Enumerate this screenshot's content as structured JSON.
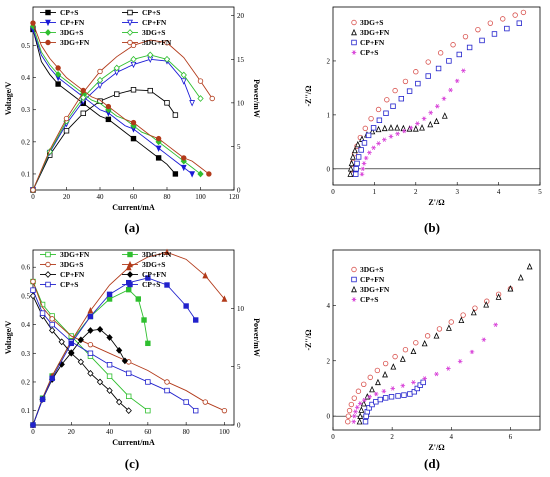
{
  "chart_data": [
    {
      "type": "line",
      "caption": "(a)",
      "xlabel": "Current/mA",
      "ylabel": "Voltage/V",
      "y2label": "Power/mW",
      "xlim": [
        0,
        120
      ],
      "ylim": [
        0.05,
        0.62
      ],
      "y2lim": [
        0,
        21
      ],
      "xticks": [
        0,
        20,
        40,
        60,
        80,
        100,
        120
      ],
      "yticks": [
        0.1,
        0.2,
        0.3,
        0.4,
        0.5
      ],
      "y2ticks": [
        0,
        5,
        10,
        15,
        20
      ],
      "legend": {
        "position": "top",
        "columns": 2
      },
      "series": [
        {
          "name": "CP+S",
          "axis": "left",
          "color": "#000000",
          "marker": "filled-square",
          "x": [
            0,
            5,
            10,
            15,
            20,
            25,
            30,
            35,
            40,
            45,
            50,
            55,
            60,
            65,
            70,
            75,
            80,
            85
          ],
          "y": [
            0.55,
            0.45,
            0.41,
            0.38,
            0.36,
            0.34,
            0.32,
            0.3,
            0.28,
            0.27,
            0.25,
            0.23,
            0.21,
            0.19,
            0.17,
            0.15,
            0.13,
            0.1
          ]
        },
        {
          "name": "CP+S",
          "axis": "right",
          "color": "#000000",
          "marker": "open-square",
          "x": [
            0,
            10,
            20,
            30,
            40,
            50,
            60,
            70,
            80,
            85
          ],
          "y": [
            0,
            4.0,
            6.8,
            8.8,
            10.2,
            11.0,
            11.5,
            11.4,
            10.0,
            8.6
          ]
        },
        {
          "name": "CP+FN",
          "axis": "left",
          "color": "#1a1ad6",
          "marker": "filled-triangle-down",
          "x": [
            0,
            5,
            10,
            15,
            20,
            25,
            30,
            35,
            40,
            45,
            50,
            55,
            60,
            65,
            70,
            75,
            80,
            85,
            90,
            95
          ],
          "y": [
            0.55,
            0.47,
            0.43,
            0.4,
            0.38,
            0.36,
            0.34,
            0.32,
            0.3,
            0.29,
            0.27,
            0.25,
            0.24,
            0.22,
            0.2,
            0.18,
            0.16,
            0.14,
            0.12,
            0.1
          ]
        },
        {
          "name": "CP+FN",
          "axis": "right",
          "color": "#1a1ad6",
          "marker": "open-triangle-down",
          "x": [
            0,
            10,
            20,
            30,
            40,
            50,
            60,
            70,
            80,
            90,
            95
          ],
          "y": [
            0,
            4.3,
            7.6,
            10.2,
            12.0,
            13.5,
            14.4,
            15.0,
            14.8,
            12.5,
            10.0
          ]
        },
        {
          "name": "3DG+S",
          "axis": "left",
          "color": "#2fbf2f",
          "marker": "filled-diamond",
          "x": [
            0,
            5,
            10,
            15,
            20,
            25,
            30,
            35,
            40,
            45,
            50,
            55,
            60,
            65,
            70,
            75,
            80,
            85,
            90,
            95,
            100
          ],
          "y": [
            0.56,
            0.48,
            0.44,
            0.41,
            0.39,
            0.37,
            0.35,
            0.33,
            0.32,
            0.3,
            0.28,
            0.27,
            0.25,
            0.23,
            0.22,
            0.2,
            0.18,
            0.16,
            0.14,
            0.12,
            0.1
          ]
        },
        {
          "name": "3DG+S",
          "axis": "right",
          "color": "#2fbf2f",
          "marker": "open-diamond",
          "x": [
            0,
            10,
            20,
            30,
            40,
            50,
            60,
            70,
            80,
            90,
            100
          ],
          "y": [
            0,
            4.4,
            7.9,
            10.6,
            12.6,
            14.0,
            15.0,
            15.5,
            15.0,
            13.2,
            10.5
          ]
        },
        {
          "name": "3DG+FN",
          "axis": "left",
          "color": "#b23a1a",
          "marker": "filled-circle",
          "x": [
            0,
            5,
            10,
            15,
            20,
            25,
            30,
            35,
            40,
            45,
            50,
            55,
            60,
            65,
            70,
            75,
            80,
            85,
            90,
            95,
            100,
            105
          ],
          "y": [
            0.57,
            0.5,
            0.46,
            0.43,
            0.4,
            0.38,
            0.36,
            0.34,
            0.33,
            0.31,
            0.29,
            0.27,
            0.26,
            0.24,
            0.22,
            0.21,
            0.19,
            0.17,
            0.15,
            0.14,
            0.12,
            0.1
          ]
        },
        {
          "name": "3DG+FN",
          "axis": "right",
          "color": "#b23a1a",
          "marker": "open-circle",
          "x": [
            0,
            10,
            20,
            30,
            40,
            50,
            60,
            70,
            80,
            90,
            100,
            107
          ],
          "y": [
            0,
            4.6,
            8.2,
            11.2,
            13.6,
            15.3,
            16.6,
            17.2,
            16.9,
            15.2,
            12.5,
            10.5
          ]
        }
      ]
    },
    {
      "type": "scatter",
      "caption": "(b)",
      "xlabel": "Z'/Ω",
      "ylabel": "-Z''/Ω",
      "xlim": [
        0,
        5
      ],
      "ylim": [
        -0.3,
        3.0
      ],
      "xticks": [
        0,
        1,
        2,
        3,
        4,
        5
      ],
      "yticks": [
        0,
        1,
        2
      ],
      "legend": {
        "position": "top-left",
        "columns": 1
      },
      "series": [
        {
          "name": "3DG+S",
          "color": "#d9534f",
          "marker": "open-circle",
          "x": [
            0.45,
            0.46,
            0.48,
            0.52,
            0.58,
            0.66,
            0.78,
            0.92,
            1.1,
            1.3,
            1.5,
            1.75,
            2.0,
            2.3,
            2.6,
            2.9,
            3.2,
            3.5,
            3.8,
            4.1,
            4.4,
            4.6
          ],
          "y": [
            -0.1,
            0.0,
            0.12,
            0.28,
            0.42,
            0.58,
            0.75,
            0.93,
            1.1,
            1.28,
            1.45,
            1.62,
            1.8,
            1.98,
            2.15,
            2.3,
            2.45,
            2.58,
            2.7,
            2.78,
            2.85,
            2.9
          ]
        },
        {
          "name": "3DG+FN",
          "color": "#000000",
          "marker": "open-triangle",
          "x": [
            0.42,
            0.43,
            0.45,
            0.48,
            0.53,
            0.6,
            0.7,
            0.82,
            0.95,
            1.1,
            1.25,
            1.4,
            1.55,
            1.7,
            1.85,
            2.0,
            2.15,
            2.35,
            2.5,
            2.7
          ],
          "y": [
            -0.1,
            0.0,
            0.1,
            0.22,
            0.34,
            0.45,
            0.55,
            0.63,
            0.69,
            0.73,
            0.75,
            0.76,
            0.76,
            0.75,
            0.74,
            0.74,
            0.76,
            0.82,
            0.88,
            0.98
          ]
        },
        {
          "name": "CP+FN",
          "color": "#2222cc",
          "marker": "open-square",
          "x": [
            0.55,
            0.56,
            0.58,
            0.62,
            0.68,
            0.76,
            0.86,
            0.98,
            1.12,
            1.28,
            1.45,
            1.65,
            1.85,
            2.05,
            2.3,
            2.55,
            2.8,
            3.05,
            3.3,
            3.6,
            3.9,
            4.2,
            4.5
          ],
          "y": [
            -0.1,
            0.0,
            0.1,
            0.22,
            0.35,
            0.48,
            0.62,
            0.76,
            0.9,
            1.03,
            1.16,
            1.3,
            1.44,
            1.58,
            1.72,
            1.86,
            2.0,
            2.12,
            2.25,
            2.38,
            2.5,
            2.6,
            2.7
          ]
        },
        {
          "name": "CP+S",
          "color": "#d63ad6",
          "marker": "star",
          "x": [
            0.7,
            0.72,
            0.75,
            0.8,
            0.88,
            0.98,
            1.1,
            1.24,
            1.4,
            1.56,
            1.72,
            1.88,
            2.04,
            2.2,
            2.36,
            2.52,
            2.68,
            2.84,
            3.0,
            3.15
          ],
          "y": [
            -0.1,
            0.0,
            0.1,
            0.2,
            0.3,
            0.39,
            0.47,
            0.54,
            0.6,
            0.65,
            0.7,
            0.76,
            0.84,
            0.93,
            1.04,
            1.16,
            1.3,
            1.46,
            1.63,
            1.82
          ]
        }
      ]
    },
    {
      "type": "line",
      "caption": "(c)",
      "xlabel": "Current/mA",
      "ylabel": "Voltage/V",
      "y2label": "Power/mW",
      "xlim": [
        0,
        105
      ],
      "ylim": [
        0.05,
        0.66
      ],
      "y2lim": [
        0,
        15
      ],
      "xticks": [
        0,
        20,
        40,
        60,
        80,
        100
      ],
      "yticks": [
        0.1,
        0.2,
        0.3,
        0.4,
        0.5,
        0.6
      ],
      "y2ticks": [
        0,
        5,
        10
      ],
      "legend": {
        "position": "top",
        "columns": 2
      },
      "series": [
        {
          "name": "3DG+FN",
          "axis": "left",
          "color": "#2fbf2f",
          "marker": "open-square",
          "x": [
            0,
            5,
            10,
            20,
            30,
            40,
            50,
            60
          ],
          "y": [
            0.55,
            0.47,
            0.43,
            0.36,
            0.29,
            0.22,
            0.15,
            0.1
          ]
        },
        {
          "name": "3DG+FN",
          "axis": "right",
          "color": "#2fbf2f",
          "marker": "filled-square",
          "x": [
            0,
            5,
            10,
            20,
            30,
            40,
            50,
            55,
            58,
            60
          ],
          "y": [
            0,
            2.3,
            4.2,
            7.2,
            9.3,
            10.8,
            11.6,
            10.8,
            9.0,
            7.0
          ]
        },
        {
          "name": "3DG+S",
          "axis": "left",
          "color": "#b23a1a",
          "marker": "open-circle",
          "x": [
            0,
            5,
            10,
            20,
            30,
            40,
            50,
            60,
            70,
            80,
            90,
            100
          ],
          "y": [
            0.55,
            0.46,
            0.42,
            0.36,
            0.33,
            0.3,
            0.27,
            0.24,
            0.2,
            0.17,
            0.13,
            0.1
          ]
        },
        {
          "name": "3DG+S",
          "axis": "right",
          "color": "#b23a1a",
          "marker": "filled-triangle",
          "x": [
            0,
            5,
            10,
            20,
            30,
            40,
            50,
            60,
            70,
            80,
            90,
            100
          ],
          "y": [
            0,
            2.3,
            4.2,
            7.2,
            9.8,
            12.0,
            13.5,
            14.4,
            14.8,
            14.2,
            12.8,
            10.8
          ]
        },
        {
          "name": "CP+FN",
          "axis": "left",
          "color": "#000000",
          "marker": "open-diamond",
          "x": [
            0,
            5,
            10,
            15,
            20,
            25,
            30,
            35,
            40,
            45,
            50
          ],
          "y": [
            0.5,
            0.43,
            0.38,
            0.34,
            0.3,
            0.27,
            0.23,
            0.2,
            0.17,
            0.13,
            0.1
          ]
        },
        {
          "name": "CP+FN",
          "axis": "right",
          "color": "#000000",
          "marker": "filled-diamond",
          "x": [
            0,
            5,
            10,
            15,
            20,
            25,
            30,
            35,
            40,
            45,
            48
          ],
          "y": [
            0,
            2.2,
            3.9,
            5.2,
            6.2,
            7.3,
            8.1,
            8.2,
            7.5,
            6.4,
            5.5
          ]
        },
        {
          "name": "CP+S",
          "axis": "left",
          "color": "#2222cc",
          "marker": "open-square",
          "x": [
            0,
            5,
            10,
            20,
            30,
            40,
            50,
            60,
            70,
            80,
            85
          ],
          "y": [
            0.52,
            0.44,
            0.4,
            0.34,
            0.3,
            0.26,
            0.23,
            0.2,
            0.17,
            0.13,
            0.1
          ]
        },
        {
          "name": "CP+S",
          "axis": "right",
          "color": "#2222cc",
          "marker": "filled-square",
          "x": [
            0,
            5,
            10,
            20,
            30,
            40,
            50,
            60,
            70,
            80,
            85
          ],
          "y": [
            0,
            2.2,
            4.0,
            7.0,
            9.3,
            11.2,
            12.2,
            12.6,
            12.0,
            10.2,
            9.0
          ]
        }
      ]
    },
    {
      "type": "scatter",
      "caption": "(d)",
      "xlabel": "Z'/Ω",
      "ylabel": "-Z''/Ω",
      "xlim": [
        0,
        7
      ],
      "ylim": [
        -0.5,
        6.0
      ],
      "xticks": [
        0,
        2,
        4,
        6
      ],
      "yticks": [
        0,
        2,
        4
      ],
      "legend": {
        "position": "top-left",
        "columns": 1
      },
      "series": [
        {
          "name": "3DG+S",
          "color": "#d9534f",
          "marker": "open-circle",
          "x": [
            0.5,
            0.52,
            0.56,
            0.62,
            0.72,
            0.86,
            1.04,
            1.26,
            1.5,
            1.78,
            2.1,
            2.45,
            2.8,
            3.2,
            3.6,
            4.0,
            4.4,
            4.8,
            5.2,
            5.6,
            6.0
          ],
          "y": [
            -0.2,
            0.0,
            0.2,
            0.42,
            0.65,
            0.9,
            1.15,
            1.4,
            1.65,
            1.9,
            2.15,
            2.4,
            2.65,
            2.9,
            3.15,
            3.4,
            3.65,
            3.9,
            4.15,
            4.4,
            4.6
          ]
        },
        {
          "name": "CP+FN",
          "color": "#2222cc",
          "marker": "open-square",
          "x": [
            1.1,
            1.12,
            1.16,
            1.22,
            1.32,
            1.45,
            1.6,
            1.78,
            1.98,
            2.2,
            2.4,
            2.6,
            2.75,
            2.85,
            2.95,
            3.05
          ],
          "y": [
            -0.2,
            0.0,
            0.16,
            0.3,
            0.42,
            0.52,
            0.6,
            0.66,
            0.7,
            0.73,
            0.76,
            0.8,
            0.88,
            1.0,
            1.12,
            1.22
          ]
        },
        {
          "name": "3DG+FN",
          "color": "#000000",
          "marker": "open-triangle",
          "x": [
            0.9,
            0.92,
            0.96,
            1.04,
            1.16,
            1.32,
            1.52,
            1.76,
            2.04,
            2.36,
            2.72,
            3.1,
            3.5,
            3.92,
            4.34,
            4.76,
            5.18,
            5.6,
            6.0,
            6.35,
            6.65
          ],
          "y": [
            -0.2,
            0.0,
            0.22,
            0.45,
            0.7,
            0.96,
            1.22,
            1.5,
            1.78,
            2.06,
            2.34,
            2.62,
            2.9,
            3.18,
            3.46,
            3.74,
            4.02,
            4.3,
            4.6,
            5.0,
            5.4
          ]
        },
        {
          "name": "CP+S",
          "color": "#d63ad6",
          "marker": "star",
          "x": [
            0.7,
            0.72,
            0.76,
            0.82,
            0.92,
            1.06,
            1.24,
            1.46,
            1.72,
            2.02,
            2.36,
            2.72,
            3.1,
            3.5,
            3.9,
            4.3,
            4.7,
            5.1,
            5.5
          ],
          "y": [
            -0.2,
            0.0,
            0.16,
            0.32,
            0.46,
            0.58,
            0.7,
            0.8,
            0.9,
            1.0,
            1.1,
            1.22,
            1.36,
            1.52,
            1.72,
            1.98,
            2.32,
            2.76,
            3.3
          ]
        }
      ]
    }
  ]
}
